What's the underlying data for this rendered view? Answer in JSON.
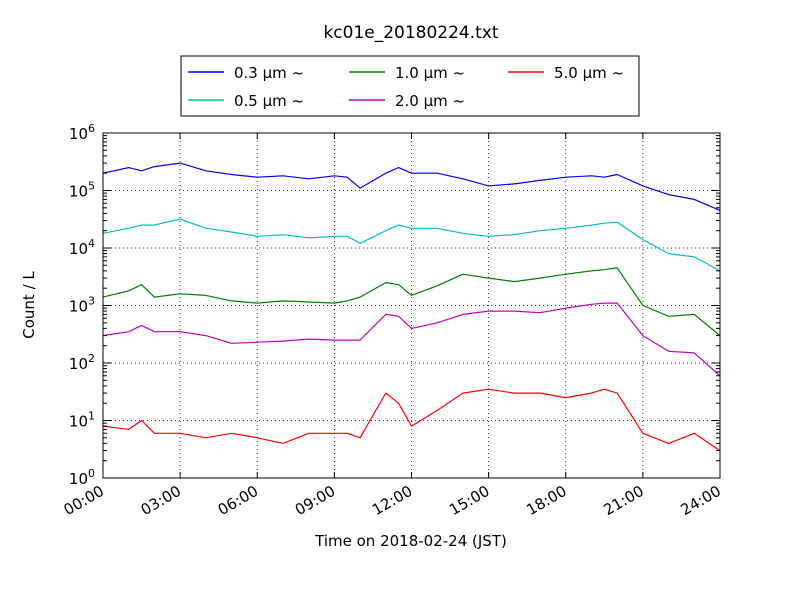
{
  "chart_data": {
    "type": "line",
    "title": "kc01e_20180224.txt",
    "xlabel": "Time on 2018-02-24 (JST)",
    "ylabel": "Count / L",
    "xlim": [
      "00:00",
      "24:00"
    ],
    "ylim": [
      1,
      1000000
    ],
    "yscale": "log",
    "grid": true,
    "legend_position": "top-center-outside",
    "xticks": [
      "00:00",
      "03:00",
      "06:00",
      "09:00",
      "12:00",
      "15:00",
      "18:00",
      "21:00",
      "24:00"
    ],
    "yticks": [
      {
        "base": "10",
        "exp": "0"
      },
      {
        "base": "10",
        "exp": "1"
      },
      {
        "base": "10",
        "exp": "2"
      },
      {
        "base": "10",
        "exp": "3"
      },
      {
        "base": "10",
        "exp": "4"
      },
      {
        "base": "10",
        "exp": "5"
      },
      {
        "base": "10",
        "exp": "6"
      }
    ],
    "x_hours": [
      0,
      1,
      1.5,
      2,
      3,
      4,
      5,
      6,
      7,
      8,
      9,
      9.5,
      10,
      11,
      11.5,
      12,
      13,
      14,
      15,
      16,
      17,
      18,
      19,
      19.5,
      20,
      21,
      22,
      23,
      24
    ],
    "series": [
      {
        "name": "0.3 μm ~",
        "color": "#0000ff",
        "values": [
          200000,
          250000,
          220000,
          260000,
          300000,
          220000,
          190000,
          170000,
          180000,
          160000,
          180000,
          170000,
          110000,
          200000,
          250000,
          200000,
          200000,
          160000,
          120000,
          130000,
          150000,
          170000,
          180000,
          170000,
          190000,
          120000,
          85000,
          70000,
          45000
        ]
      },
      {
        "name": "0.5 μm ~",
        "color": "#00bfbf",
        "values": [
          18000,
          22000,
          25000,
          25000,
          32000,
          22000,
          19000,
          16000,
          17000,
          15000,
          16000,
          16000,
          12000,
          20000,
          25000,
          22000,
          22000,
          18000,
          16000,
          17000,
          20000,
          22000,
          25000,
          27000,
          28000,
          14000,
          8000,
          7000,
          4000
        ]
      },
      {
        "name": "1.0 μm ~",
        "color": "#008000",
        "values": [
          1400,
          1800,
          2300,
          1400,
          1600,
          1500,
          1200,
          1100,
          1200,
          1150,
          1100,
          1200,
          1400,
          2500,
          2300,
          1500,
          2200,
          3500,
          3000,
          2600,
          3000,
          3500,
          4000,
          4200,
          4500,
          1000,
          650,
          700,
          300
        ]
      },
      {
        "name": "2.0 μm ~",
        "color": "#bf00bf",
        "values": [
          300,
          350,
          450,
          350,
          350,
          300,
          220,
          230,
          240,
          260,
          250,
          250,
          250,
          700,
          650,
          400,
          500,
          700,
          800,
          800,
          750,
          900,
          1050,
          1100,
          1100,
          300,
          160,
          150,
          60
        ]
      },
      {
        "name": "5.0 μm ~",
        "color": "#ff0000",
        "values": [
          8,
          7,
          10,
          6,
          6,
          5,
          6,
          5,
          4,
          6,
          6,
          6,
          5,
          30,
          20,
          8,
          15,
          30,
          35,
          30,
          30,
          25,
          30,
          35,
          30,
          6,
          4,
          6,
          3
        ]
      }
    ]
  }
}
